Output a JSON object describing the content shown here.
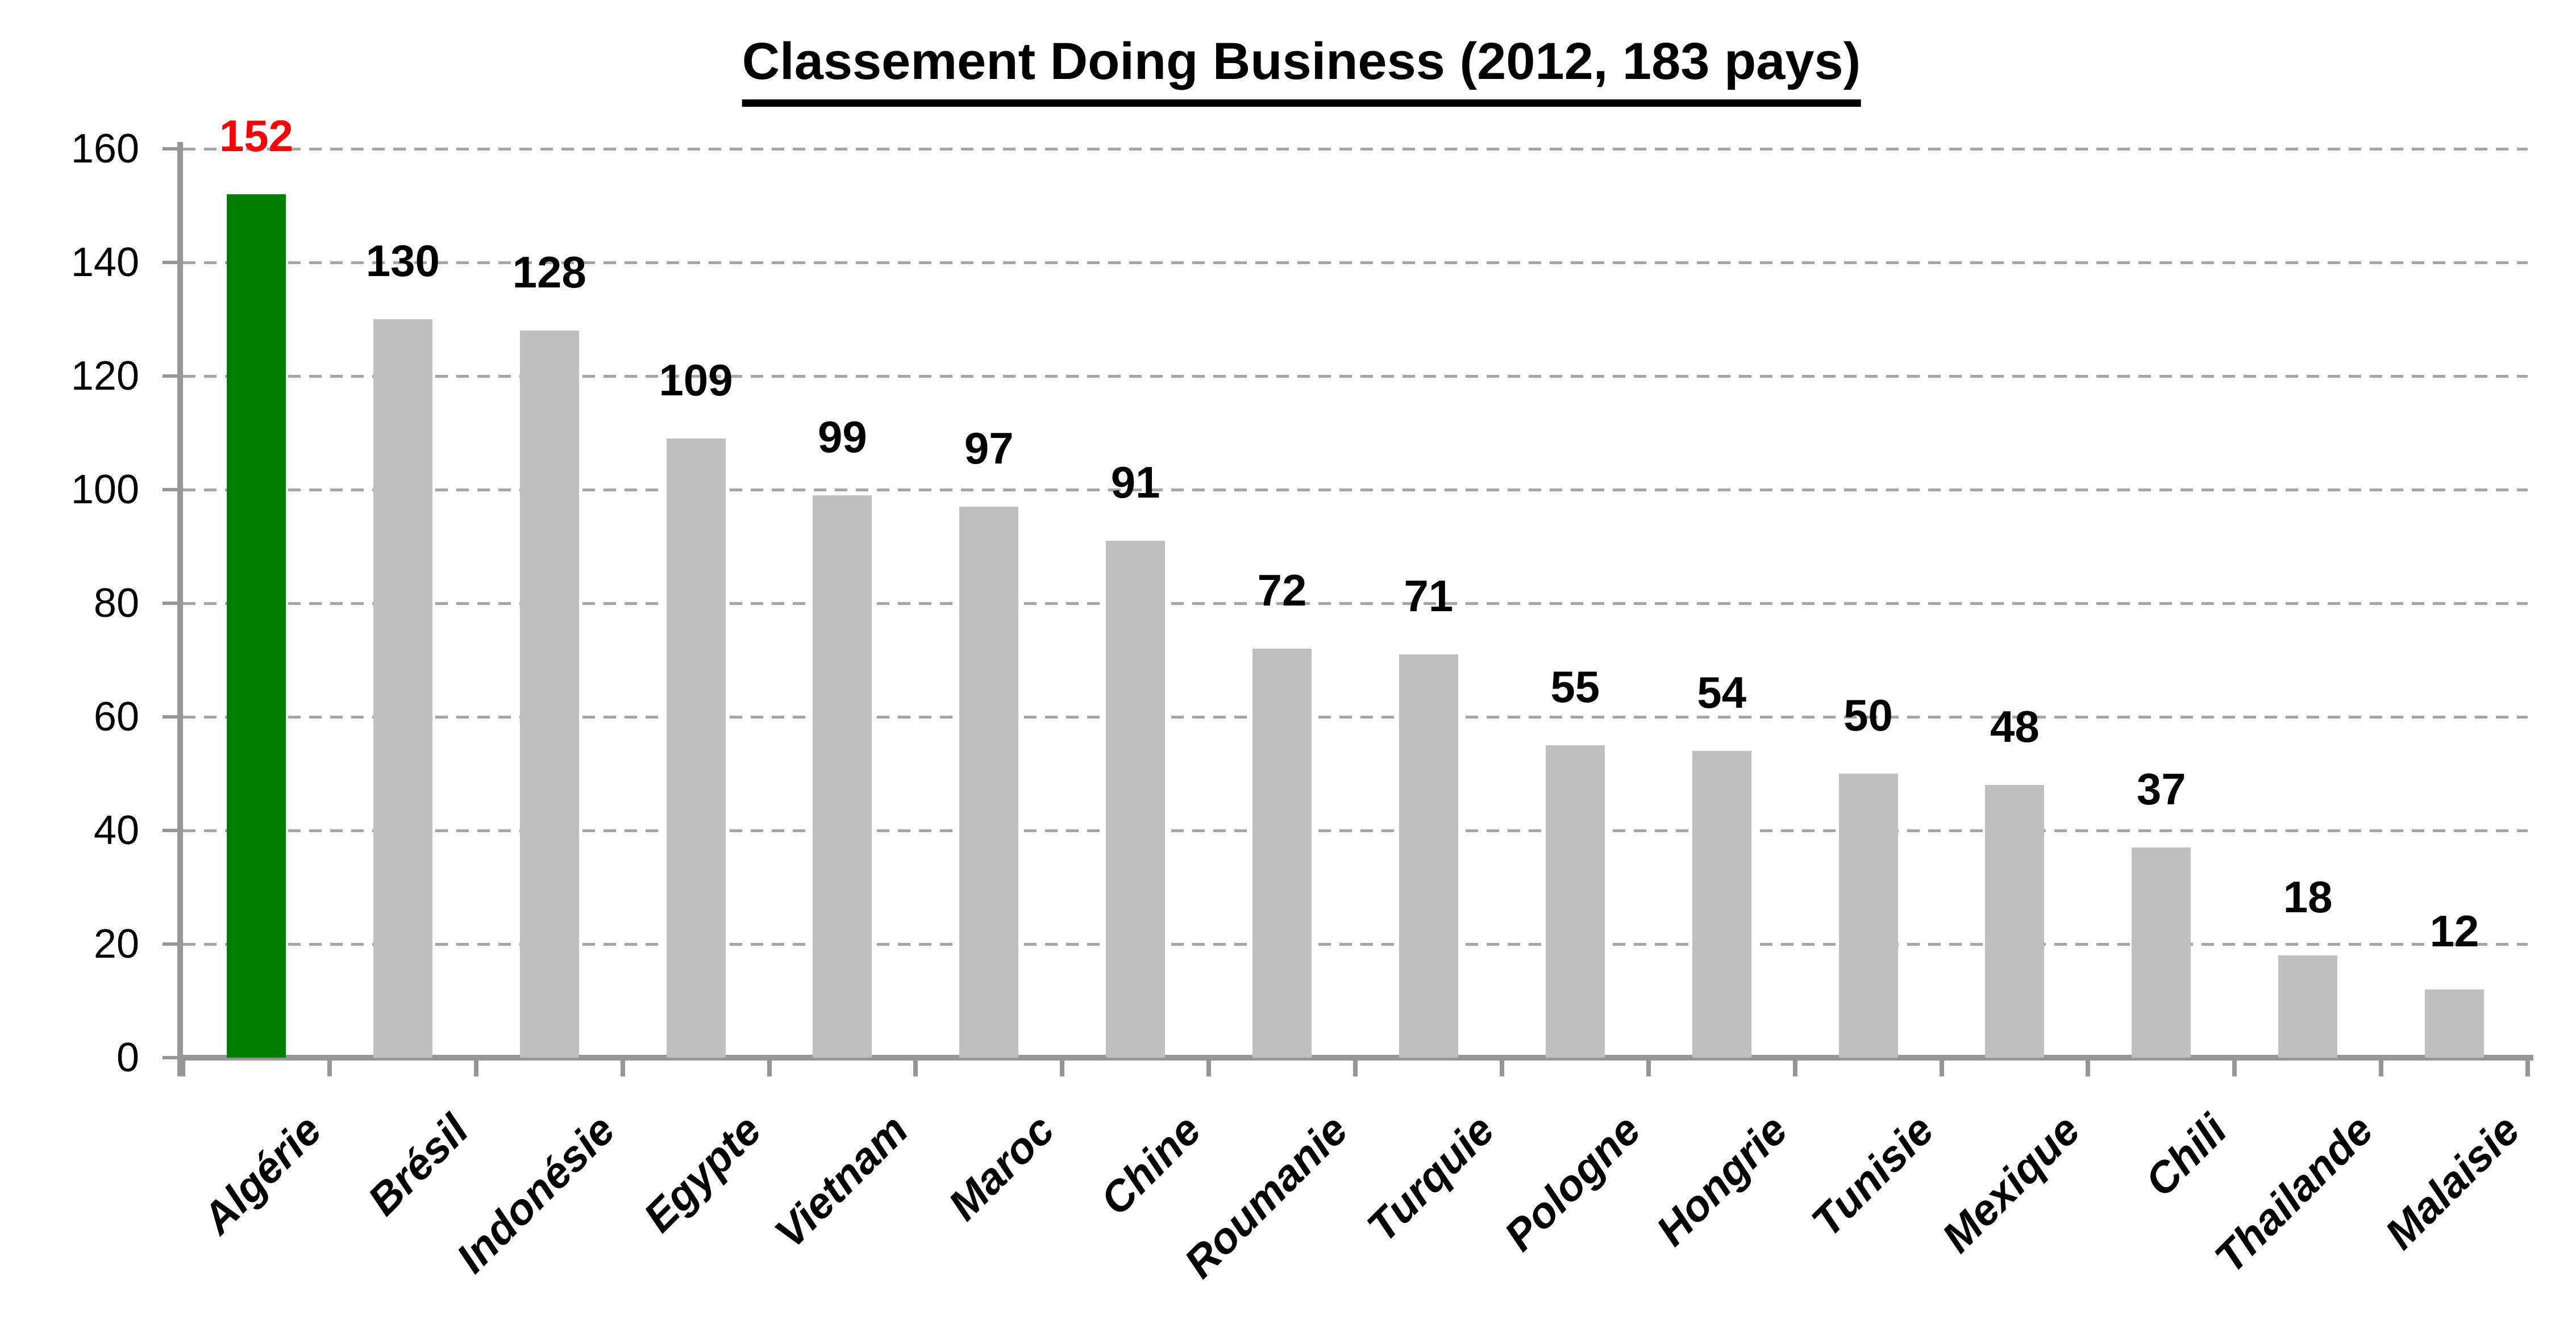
{
  "page": {
    "background": "#FFFFFF"
  },
  "chart_data": {
    "type": "bar",
    "title": "Classement Doing Business (2012, 183 pays)",
    "categories": [
      "Algérie",
      "Brésil",
      "Indonésie",
      "Egypte",
      "Vietnam",
      "Maroc",
      "Chine",
      "Roumanie",
      "Turquie",
      "Pologne",
      "Hongrie",
      "Tunisie",
      "Mexique",
      "Chili",
      "Thailande",
      "Malaisie"
    ],
    "values": [
      152,
      130,
      128,
      109,
      99,
      97,
      91,
      72,
      71,
      55,
      54,
      50,
      48,
      37,
      18,
      12
    ],
    "highlight_index": 0,
    "colors": {
      "bar": "#BFBFBF",
      "highlight_bar": "#008000",
      "value_label": "#000000",
      "highlight_value_label": "#FF0000",
      "axis": "#969696",
      "gridline": "#A6A6A6",
      "title": "#000000"
    },
    "xlabel": "",
    "ylabel": "",
    "ylim": [
      0,
      160
    ],
    "yticks": [
      0,
      20,
      40,
      60,
      80,
      100,
      120,
      140,
      160
    ],
    "ytick_labels": [
      "0",
      "20",
      "40",
      "60",
      "80",
      "100",
      "120",
      "140",
      "160"
    ],
    "grid": {
      "horizontal": true,
      "style": "dashed"
    },
    "legend": "none",
    "value_labels_position": "above bars",
    "x_label_rotation_deg": 45
  }
}
